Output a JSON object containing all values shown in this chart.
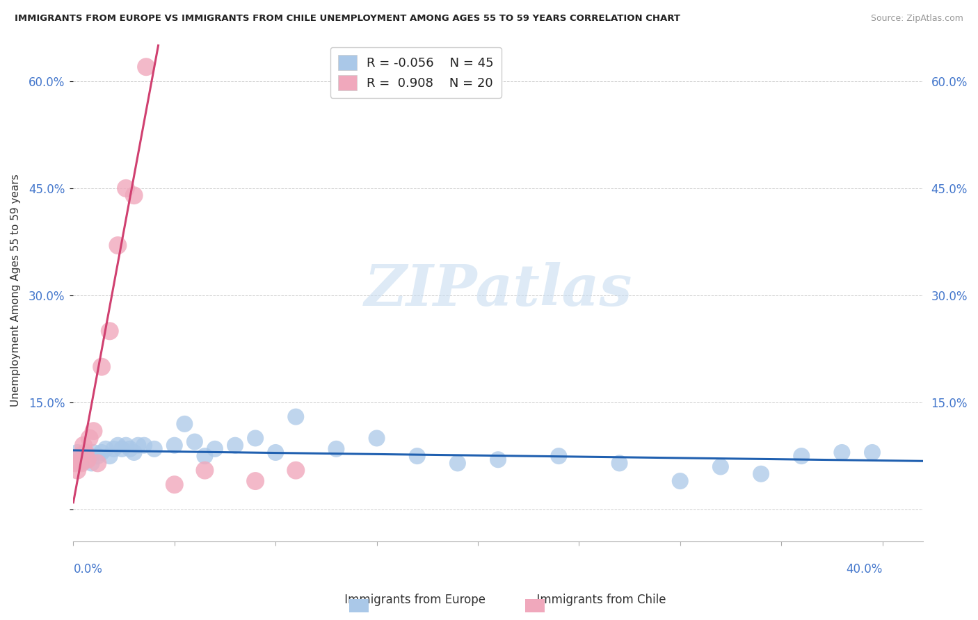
{
  "title": "IMMIGRANTS FROM EUROPE VS IMMIGRANTS FROM CHILE UNEMPLOYMENT AMONG AGES 55 TO 59 YEARS CORRELATION CHART",
  "source": "Source: ZipAtlas.com",
  "ylabel": "Unemployment Among Ages 55 to 59 years",
  "xlim": [
    0.0,
    0.42
  ],
  "ylim": [
    -0.045,
    0.66
  ],
  "europe_color": "#aac8e8",
  "chile_color": "#f0a8bc",
  "europe_line_color": "#2060b0",
  "chile_line_color": "#d04070",
  "europe_R": -0.056,
  "europe_N": 45,
  "chile_R": 0.908,
  "chile_N": 20,
  "ytick_positions": [
    0.0,
    0.15,
    0.3,
    0.45,
    0.6
  ],
  "ytick_labels_left": [
    "",
    "15.0%",
    "30.0%",
    "45.0%",
    "60.0%"
  ],
  "ytick_labels_right": [
    "",
    "15.0%",
    "30.0%",
    "45.0%",
    "60.0%"
  ],
  "europe_x": [
    0.001,
    0.002,
    0.003,
    0.004,
    0.005,
    0.006,
    0.007,
    0.008,
    0.009,
    0.01,
    0.012,
    0.014,
    0.016,
    0.018,
    0.02,
    0.022,
    0.024,
    0.026,
    0.028,
    0.03,
    0.032,
    0.035,
    0.04,
    0.05,
    0.055,
    0.06,
    0.065,
    0.07,
    0.08,
    0.09,
    0.1,
    0.11,
    0.13,
    0.15,
    0.17,
    0.19,
    0.21,
    0.24,
    0.27,
    0.3,
    0.32,
    0.34,
    0.36,
    0.38,
    0.395
  ],
  "europe_y": [
    0.07,
    0.08,
    0.065,
    0.07,
    0.075,
    0.08,
    0.07,
    0.075,
    0.065,
    0.08,
    0.075,
    0.08,
    0.085,
    0.075,
    0.085,
    0.09,
    0.085,
    0.09,
    0.085,
    0.08,
    0.09,
    0.09,
    0.085,
    0.09,
    0.12,
    0.095,
    0.075,
    0.085,
    0.09,
    0.1,
    0.08,
    0.13,
    0.085,
    0.1,
    0.075,
    0.065,
    0.07,
    0.075,
    0.065,
    0.04,
    0.06,
    0.05,
    0.075,
    0.08,
    0.08
  ],
  "chile_x": [
    0.001,
    0.002,
    0.003,
    0.004,
    0.005,
    0.006,
    0.007,
    0.008,
    0.01,
    0.012,
    0.014,
    0.018,
    0.022,
    0.026,
    0.03,
    0.036,
    0.05,
    0.065,
    0.09,
    0.11
  ],
  "chile_y": [
    0.065,
    0.055,
    0.075,
    0.065,
    0.09,
    0.08,
    0.07,
    0.1,
    0.11,
    0.065,
    0.2,
    0.25,
    0.37,
    0.45,
    0.44,
    0.62,
    0.035,
    0.055,
    0.04,
    0.055
  ],
  "europe_trendline_x": [
    0.0,
    0.42
  ],
  "europe_trendline_y": [
    0.083,
    0.068
  ],
  "chile_trendline_x": [
    0.0,
    0.042
  ],
  "chile_trendline_y": [
    0.01,
    0.65
  ],
  "watermark_text": "ZIPatlas",
  "watermark_color": "#c8ddf0",
  "legend_R_color": "#d04070",
  "legend_N_color": "#2060b0"
}
